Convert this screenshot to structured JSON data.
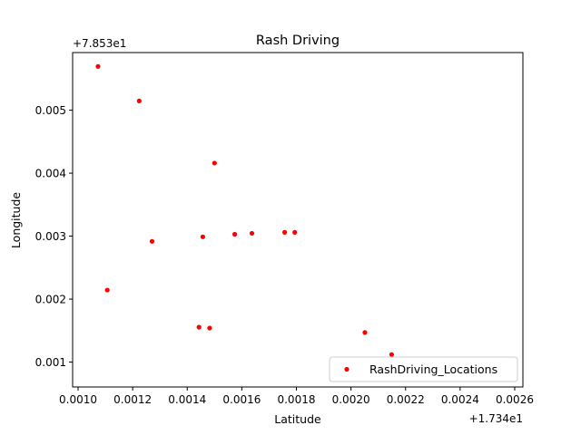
{
  "chart_data": {
    "type": "scatter",
    "title": "Rash Driving",
    "xlabel": "Latitude",
    "ylabel": "Longitude",
    "x_offset_label": "+1.734e1",
    "y_offset_label": "+7.853e1",
    "x_offset": 17.34,
    "y_offset": 78.53,
    "xlim": [
      0.00098,
      0.00263
    ],
    "ylim": [
      0.000605,
      0.005915
    ],
    "x_ticks": [
      {
        "value": 0.001,
        "label": "0.0010"
      },
      {
        "value": 0.0012,
        "label": "0.0012"
      },
      {
        "value": 0.0014,
        "label": "0.0014"
      },
      {
        "value": 0.0016,
        "label": "0.0016"
      },
      {
        "value": 0.0018,
        "label": "0.0018"
      },
      {
        "value": 0.002,
        "label": "0.0020"
      },
      {
        "value": 0.0022,
        "label": "0.0022"
      },
      {
        "value": 0.0024,
        "label": "0.0024"
      },
      {
        "value": 0.0026,
        "label": "0.0026"
      }
    ],
    "y_ticks": [
      {
        "value": 0.001,
        "label": "0.001"
      },
      {
        "value": 0.002,
        "label": "0.002"
      },
      {
        "value": 0.003,
        "label": "0.003"
      },
      {
        "value": 0.004,
        "label": "0.004"
      },
      {
        "value": 0.005,
        "label": "0.005"
      }
    ],
    "grid": false,
    "legend_position": "lower-right",
    "series": [
      {
        "name": "RashDriving_Locations",
        "color": "#ff0000",
        "marker": "dot",
        "points": [
          {
            "x": 0.001073,
            "y": 0.005695
          },
          {
            "x": 0.001224,
            "y": 0.005147
          },
          {
            "x": 0.0015,
            "y": 0.00416
          },
          {
            "x": 0.001271,
            "y": 0.002917
          },
          {
            "x": 0.001457,
            "y": 0.002989
          },
          {
            "x": 0.001574,
            "y": 0.00303
          },
          {
            "x": 0.001637,
            "y": 0.003045
          },
          {
            "x": 0.001757,
            "y": 0.00306
          },
          {
            "x": 0.001794,
            "y": 0.00306
          },
          {
            "x": 0.001107,
            "y": 0.002144
          },
          {
            "x": 0.001443,
            "y": 0.001555
          },
          {
            "x": 0.001482,
            "y": 0.00154
          },
          {
            "x": 0.002051,
            "y": 0.00147
          },
          {
            "x": 0.002149,
            "y": 0.00112
          }
        ]
      }
    ]
  }
}
